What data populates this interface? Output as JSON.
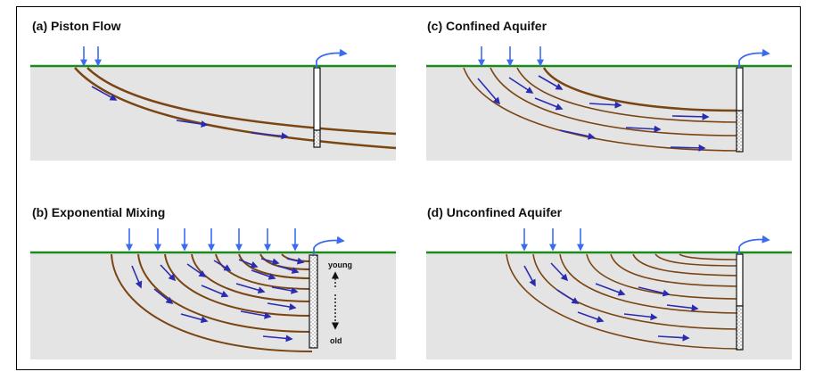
{
  "panels": [
    {
      "id": "a",
      "title": "(a) Piston Flow"
    },
    {
      "id": "b",
      "title": "(b) Exponential Mixing"
    },
    {
      "id": "c",
      "title": "(c) Confined Aquifer"
    },
    {
      "id": "d",
      "title": "(d) Unconfined Aquifer"
    }
  ],
  "well_labels": {
    "young": "young",
    "old": "old"
  },
  "colors": {
    "ground": "#e4e4e4",
    "surface_line": "#1e8a1e",
    "flowline": "#7a4513",
    "arrow": "#2b2bb0",
    "recharge_arrow": "#3b6cf0"
  }
}
